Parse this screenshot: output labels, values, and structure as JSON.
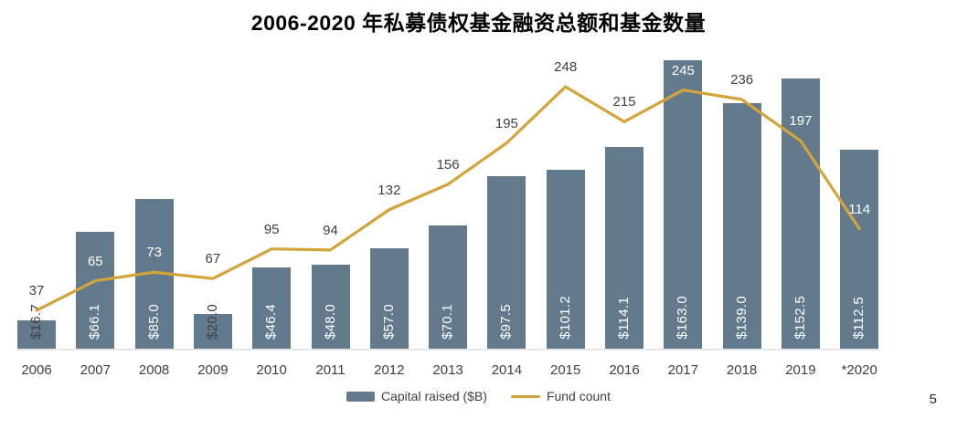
{
  "title": "2006-2020 年私募债权基金融资总额和基金数量",
  "page_number": "5",
  "colors": {
    "bar": "#627a8c",
    "line": "#d2a43a",
    "label_dark": "#404040",
    "label_light": "#ffffff",
    "axis_line": "#e4e6e8"
  },
  "chart_data": {
    "type": "bar+line combo",
    "title": "2006-2020 年私募债权基金融资总额和基金数量",
    "categories": [
      "2006",
      "2007",
      "2008",
      "2009",
      "2010",
      "2011",
      "2012",
      "2013",
      "2014",
      "2015",
      "2016",
      "2017",
      "2018",
      "2019",
      "*2020"
    ],
    "series": [
      {
        "name": "Capital raised ($B)",
        "type": "bar",
        "value_prefix": "$",
        "values": [
          16.7,
          66.1,
          85.0,
          20.0,
          46.4,
          48.0,
          57.0,
          70.1,
          97.5,
          101.2,
          114.1,
          163.0,
          139.0,
          152.5,
          112.5
        ]
      },
      {
        "name": "Fund count",
        "type": "line",
        "values": [
          37,
          65,
          73,
          67,
          95,
          94,
          132,
          156,
          195,
          248,
          215,
          245,
          236,
          197,
          114
        ]
      }
    ],
    "xlabel": "",
    "ylabel": "",
    "axes_hidden": true,
    "grid": false,
    "legend_position": "bottom",
    "data_labels": "shown for every bar and every line point"
  }
}
